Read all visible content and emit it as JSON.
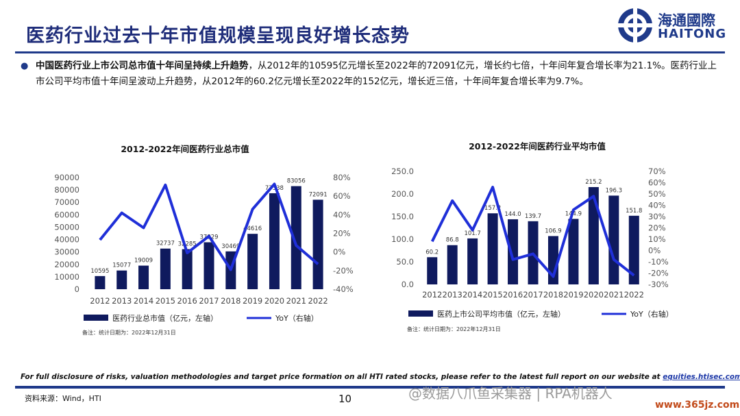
{
  "header": {
    "title": "医药行业过去十年市值规模呈现良好增长态势",
    "logo_cn": "海通國際",
    "logo_en": "HAITONG",
    "accent_color": "#1f3a8a"
  },
  "bullet": {
    "bold": "中国医药行业上市公司总市值十年间呈持续上升趋势",
    "rest": "，从2012年的10595亿元增长至2022年的72091亿元，增长约七倍，十年间年复合增长率为21.1%。医药行业上市公司平均市值十年间呈波动上升趋势，从2012年的60.2亿元增长至2022年的152亿元，增长近三倍，十年间年复合增长率为9.7%。"
  },
  "chart_data": [
    {
      "type": "bar",
      "title": "2012-2022年间医药行业总市值",
      "categories": [
        "2012",
        "2013",
        "2014",
        "2015",
        "2016",
        "2017",
        "2018",
        "2019",
        "2020",
        "2021",
        "2022"
      ],
      "series": [
        {
          "name": "医药行业总市值（亿元，左轴）",
          "type": "bar",
          "axis": "left",
          "values": [
            10595,
            15077,
            19009,
            32737,
            32285,
            37829,
            30469,
            44616,
            77338,
            83056,
            72091
          ],
          "labels": [
            "10595",
            "15077",
            "19009",
            "32737",
            "32285",
            "37829",
            "30469",
            "44616",
            "77338",
            "83056",
            "72091"
          ]
        },
        {
          "name": "YoY（右轴）",
          "type": "line",
          "axis": "right",
          "values": [
            13,
            42,
            26,
            72,
            -1,
            17,
            -19,
            46,
            73,
            7,
            -13
          ]
        }
      ],
      "left_axis": {
        "ylim": [
          0,
          90000
        ],
        "ticks": [
          "0",
          "10000",
          "20000",
          "30000",
          "40000",
          "50000",
          "60000",
          "70000",
          "80000",
          "90000"
        ]
      },
      "right_axis": {
        "ylim": [
          -40,
          80
        ],
        "ticks": [
          "-40%",
          "-20%",
          "0%",
          "20%",
          "40%",
          "60%",
          "80%"
        ]
      },
      "legend_position": "bottom",
      "footnote": "备注：统计日期为：2022年12月31日",
      "bar_color": "#0f1a5e",
      "line_color": "#1f2fd8"
    },
    {
      "type": "bar",
      "title": "2012-2022年间医药行业平均市值",
      "categories": [
        "2012",
        "2013",
        "2014",
        "2015",
        "2016",
        "2017",
        "2018",
        "2019",
        "2020",
        "2021",
        "2022"
      ],
      "series": [
        {
          "name": "医药上市公司平均市值（亿元，左轴）",
          "type": "bar",
          "axis": "left",
          "values": [
            60.2,
            86.8,
            101.7,
            157.2,
            144.0,
            139.7,
            106.9,
            144.9,
            215.2,
            196.3,
            151.8
          ],
          "labels": [
            "60.2",
            "86.8",
            "101.7",
            "157.2",
            "144.0",
            "139.7",
            "106.9",
            "144.9",
            "215.2",
            "196.3",
            "151.8"
          ]
        },
        {
          "name": "YoY（右轴）",
          "type": "line",
          "axis": "right",
          "values": [
            8,
            44,
            18,
            56,
            -8,
            -3,
            -23,
            36,
            48,
            -8,
            -22
          ]
        }
      ],
      "left_axis": {
        "ylim": [
          0,
          250
        ],
        "ticks": [
          "0.0",
          "50.0",
          "100.0",
          "150.0",
          "200.0",
          "250.0"
        ]
      },
      "right_axis": {
        "ylim": [
          -30,
          70
        ],
        "ticks": [
          "-30%",
          "-20%",
          "-10%",
          "0%",
          "10%",
          "20%",
          "30%",
          "40%",
          "50%",
          "60%",
          "70%"
        ]
      },
      "legend_position": "bottom",
      "footnote": "备注：统计日期为：2022年12月31日",
      "bar_color": "#0f1a5e",
      "line_color": "#1f2fd8"
    }
  ],
  "footer": {
    "disclaimer": "For full disclosure of risks, valuation methodologies and target price formation on all HTI rated stocks, please refer to the latest full report on our website at ",
    "link": "equities.htisec.com",
    "source": "资料来源：Wind，HTI",
    "page": "10"
  },
  "watermark": {
    "text": "@数据八爪鱼采集器 | RPA机器人",
    "site": "www.365jz.com"
  }
}
